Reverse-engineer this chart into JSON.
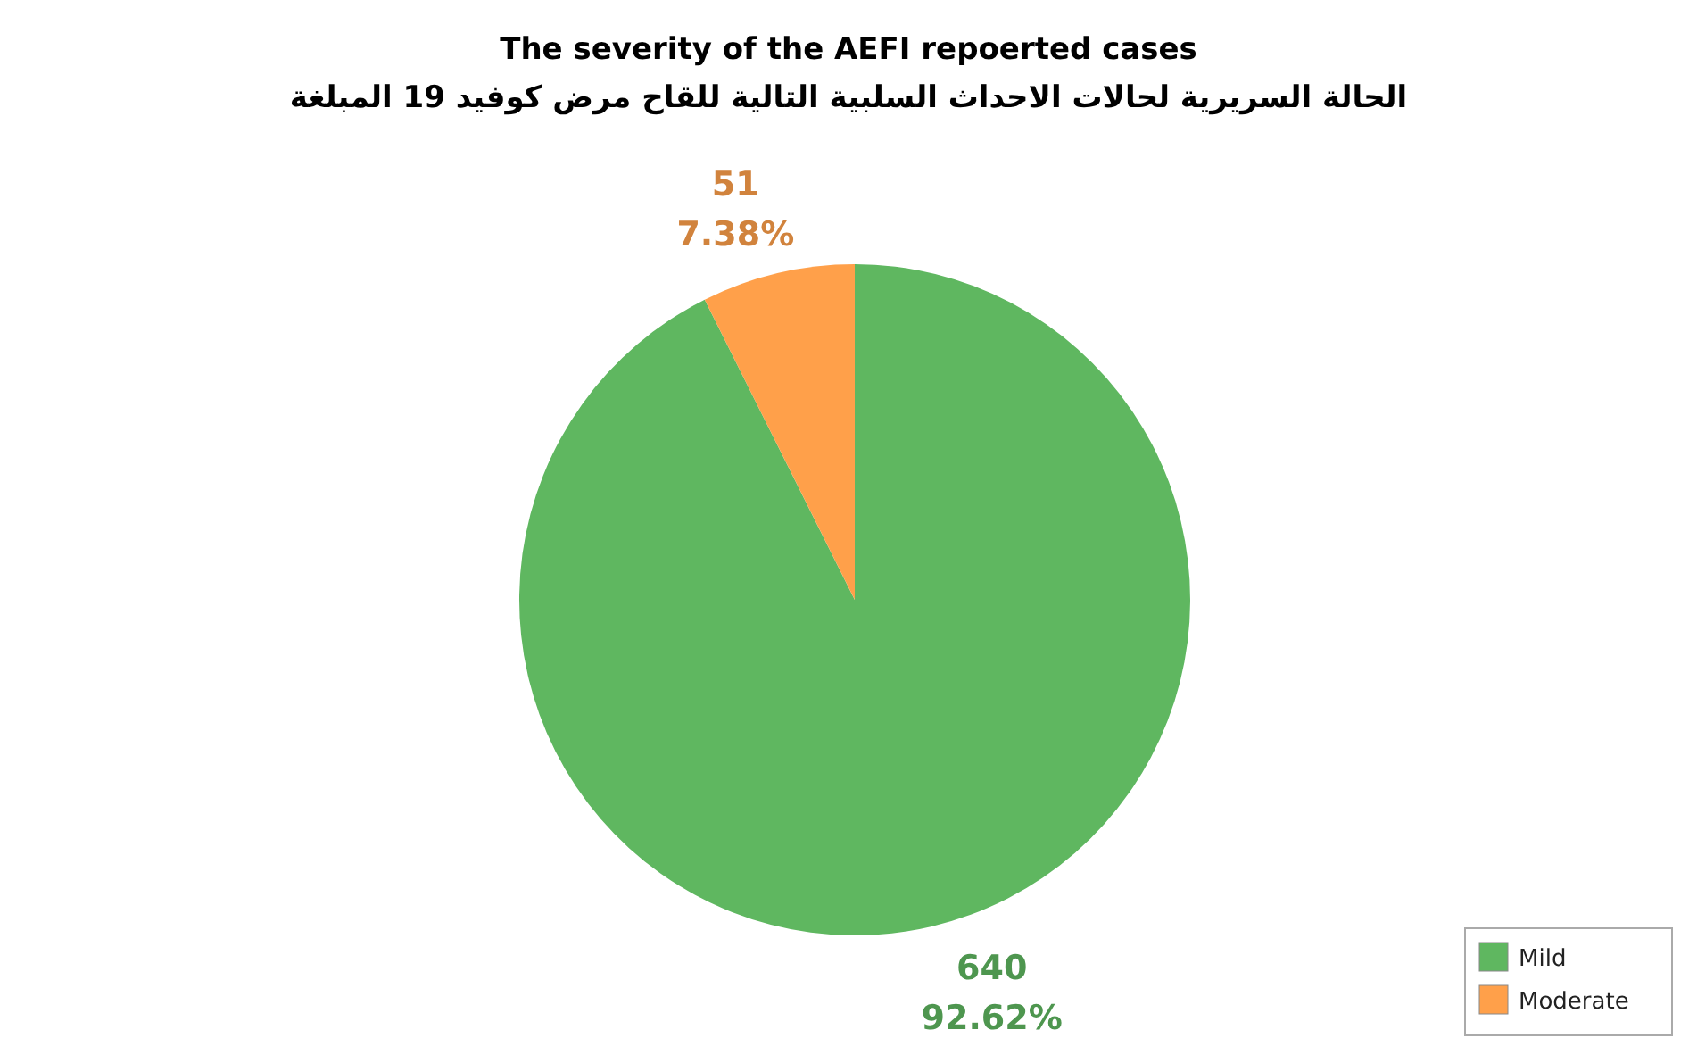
{
  "chart_data": {
    "type": "pie",
    "title": "The severity of the AEFI repoerted cases",
    "subtitle": "الحالة السريرية لحالات الاحداث السلبية التالية للقاح مرض كوفيد 19 المبلغة",
    "categories": [
      "Mild",
      "Moderate"
    ],
    "values": [
      640,
      51
    ],
    "colors": [
      "#5fb760",
      "#ffa04a"
    ],
    "value_labels": [
      "640\n92.62%",
      "51\n7.38%"
    ],
    "legend": "bottom right"
  }
}
